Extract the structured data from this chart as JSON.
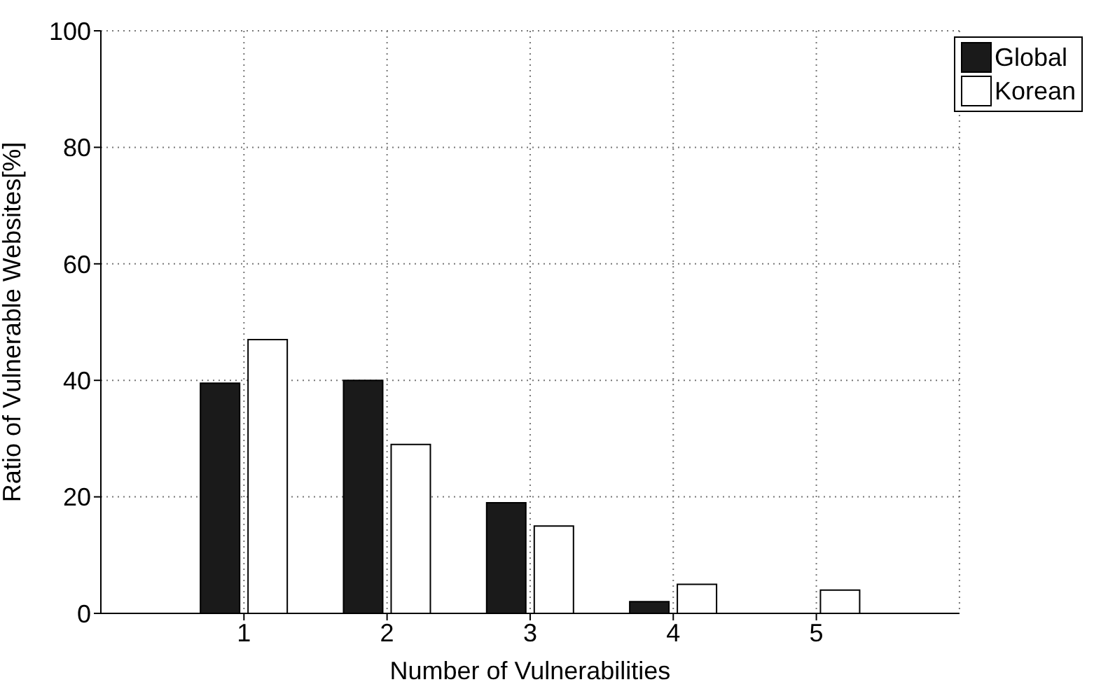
{
  "chart_data": {
    "type": "bar",
    "xlabel": "Number of Vulnerabilities",
    "ylabel": "Ratio of Vulnerable Websites[%]",
    "x": [
      1,
      2,
      3,
      4,
      5
    ],
    "series": [
      {
        "name": "Global",
        "color": "#1a1a1a",
        "values": [
          39.5,
          40,
          19,
          2,
          0
        ]
      },
      {
        "name": "Korean",
        "color": "#ffffff",
        "values": [
          47,
          29,
          15,
          5,
          4
        ]
      }
    ],
    "xlim": [
      0,
      6
    ],
    "xticks": [
      1,
      2,
      3,
      4,
      5
    ],
    "ylim": [
      0,
      100
    ],
    "yticks": [
      0,
      20,
      40,
      60,
      80,
      100
    ],
    "grid": true,
    "legend": "top right"
  }
}
